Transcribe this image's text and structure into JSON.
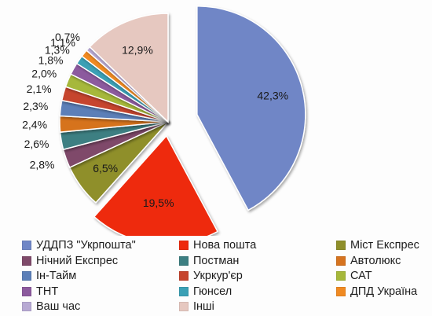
{
  "chart_data": {
    "type": "pie",
    "labels": [
      "УДДПЗ \"Укрпошта\"",
      "Нова пошта",
      "Міст Експрес",
      "Нічний Експрес",
      "Постман",
      "Автолюкс",
      "Ін-Тайм",
      "Укркур'єр",
      "САТ",
      "ТНТ",
      "Гюнсел",
      "ДПД Україна",
      "Ваш час",
      "Інші"
    ],
    "values": [
      42.3,
      19.5,
      6.5,
      2.8,
      2.6,
      2.4,
      2.3,
      2.1,
      2.0,
      1.8,
      1.3,
      1.1,
      0.7,
      12.9
    ],
    "value_labels": [
      "42,3%",
      "19,5%",
      "6,5%",
      "2,8%",
      "2,6%",
      "2,4%",
      "2,3%",
      "2,1%",
      "2,0%",
      "1,8%",
      "1,3%",
      "1,1%",
      "0,7%",
      "12,9%"
    ],
    "colors": [
      "#6f86c6",
      "#ee2a0c",
      "#8f8f2a",
      "#7f4a6a",
      "#3d7f82",
      "#d6731f",
      "#5c7fb8",
      "#c6452e",
      "#a6b83a",
      "#8c5a9e",
      "#3ba0b5",
      "#f08a22",
      "#b7a9d3",
      "#e6c8c0"
    ],
    "exploded": [
      "УДДПЗ \"Укрпошта\"",
      "Нова пошта"
    ],
    "legend_position": "bottom"
  }
}
